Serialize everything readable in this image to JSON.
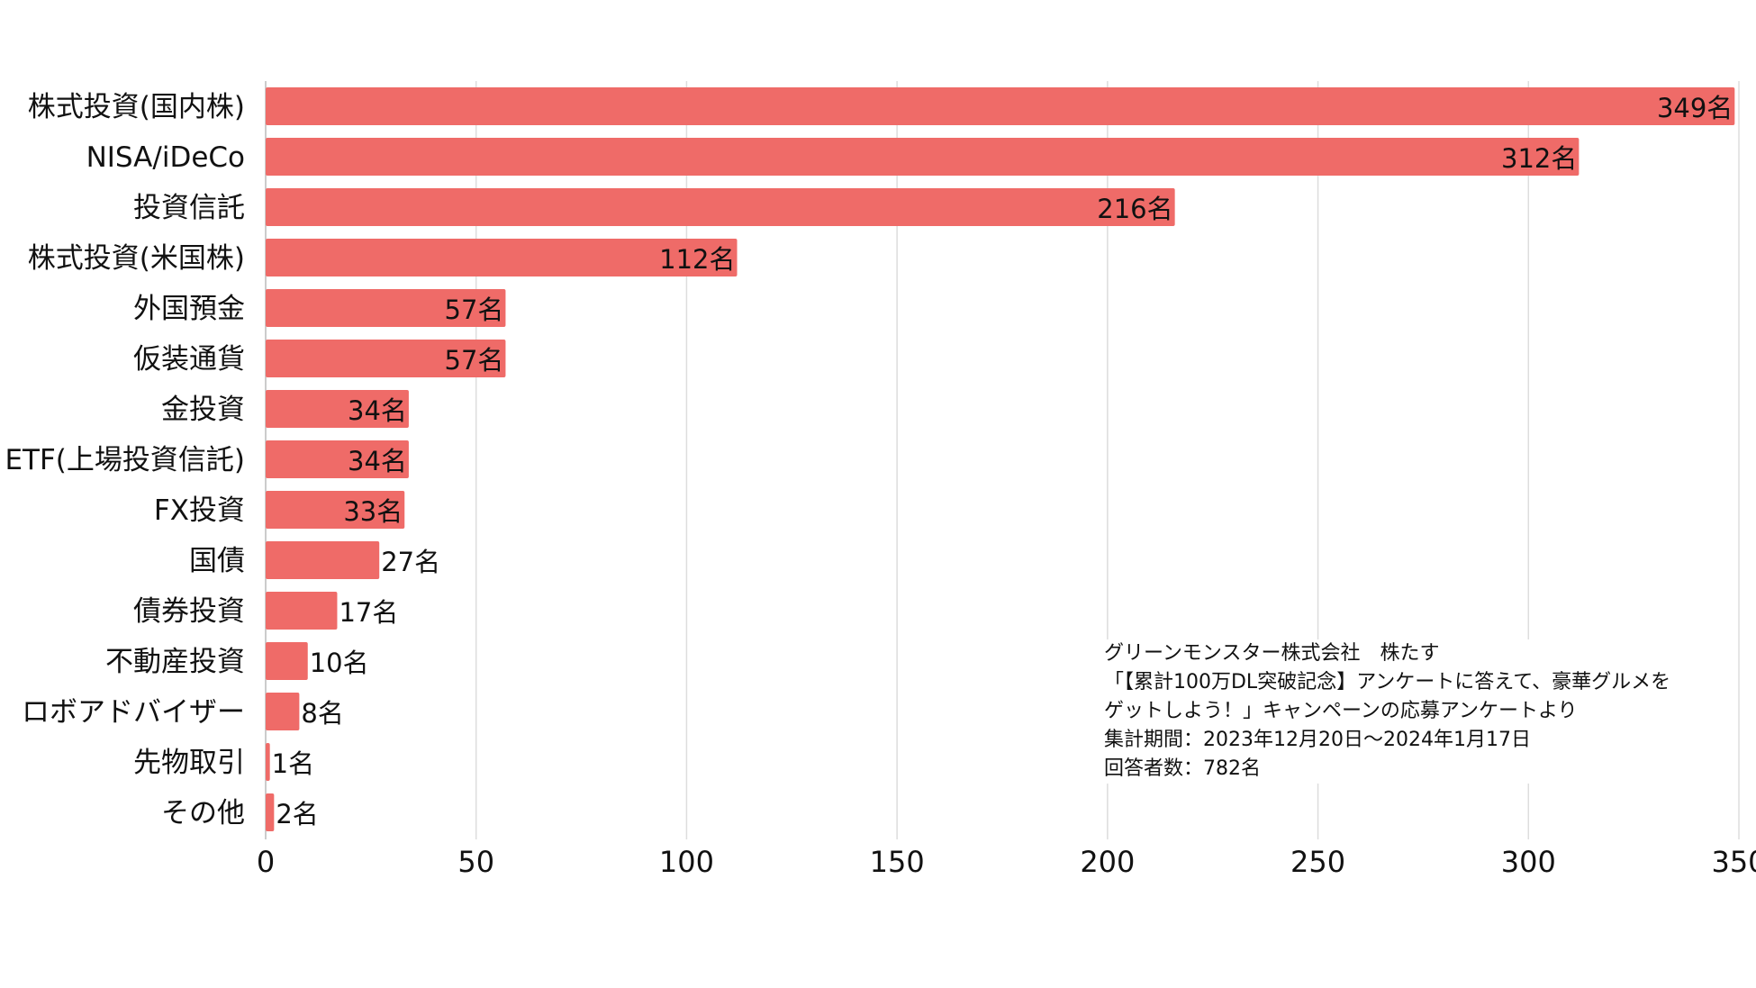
{
  "chart_data": {
    "type": "bar",
    "orientation": "horizontal",
    "categories": [
      "株式投資(国内株)",
      "NISA/iDeCo",
      "投資信託",
      "株式投資(米国株)",
      "外国預金",
      "仮装通貨",
      "金投資",
      "ETF(上場投資信託)",
      "FX投資",
      "国債",
      "債券投資",
      "不動産投資",
      "ロボアドバイザー",
      "先物取引",
      "その他"
    ],
    "values": [
      349,
      312,
      216,
      112,
      57,
      57,
      34,
      34,
      33,
      27,
      17,
      10,
      8,
      1,
      2
    ],
    "value_labels": [
      "349名",
      "312名",
      "216名",
      "112名",
      "57名",
      "57名",
      "34名",
      "34名",
      "33名",
      "27名",
      "17名",
      "10名",
      "8名",
      "1名",
      "2名"
    ],
    "xlim": [
      0,
      350
    ],
    "xticks": [
      0,
      50,
      100,
      150,
      200,
      250,
      300,
      350
    ],
    "xtick_labels": [
      "0",
      "50",
      "100",
      "150",
      "200",
      "250",
      "300",
      "350"
    ],
    "grid": "vertical",
    "colors": {
      "bar": "#ef6b68",
      "grid": "#dddddd",
      "axis": "#cccccc"
    }
  },
  "note": {
    "lines": [
      "グリーンモンスター株式会社　株たす",
      "「【累計100万DL突破記念】アンケートに答えて、豪華グルメを",
      "ゲットしよう！」キャンペーンの応募アンケートより",
      "集計期間：2023年12月20日〜2024年1月17日",
      "回答者数：782名"
    ]
  }
}
